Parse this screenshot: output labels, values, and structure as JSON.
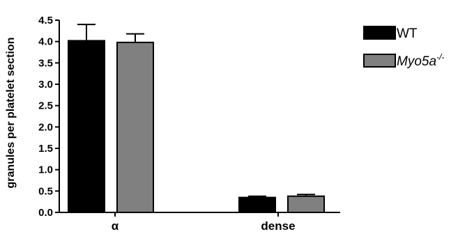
{
  "chart_data": {
    "type": "bar",
    "title": "",
    "xlabel": "",
    "ylabel": "granules per platelet section",
    "ylim": [
      0,
      4.5
    ],
    "yticks": [
      "0.0",
      "0.5",
      "1.0",
      "1.5",
      "2.0",
      "2.5",
      "3.0",
      "3.5",
      "4.0",
      "4.5"
    ],
    "categories": [
      "α",
      "dense"
    ],
    "legend_position": "top-right",
    "series": [
      {
        "name": "WT",
        "name_sup": "",
        "color": "#000000",
        "values": [
          4.02,
          0.35
        ],
        "errors": [
          0.38,
          0.03
        ]
      },
      {
        "name": "Myo5a",
        "name_sup": "-/-",
        "color": "#808080",
        "values": [
          3.98,
          0.38
        ],
        "errors": [
          0.2,
          0.04
        ]
      }
    ]
  }
}
